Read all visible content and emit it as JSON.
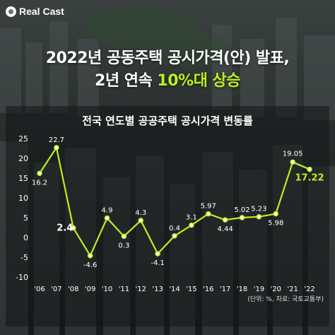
{
  "brand": {
    "logo_text": "Real Cast"
  },
  "headline": {
    "line1": "2022년 공동주택 공시가격(안) 발표,",
    "line2_prefix": "2년 연속 ",
    "line2_highlight": "10%대 상승",
    "highlight_color": "#b9f01f"
  },
  "chart_data": {
    "type": "line",
    "title": "전국 연도별 공공주택 공시가격 변동률",
    "categories": [
      "'06",
      "'07",
      "'08",
      "'09",
      "'10",
      "'11",
      "'12",
      "'13",
      "'14",
      "'15",
      "'16",
      "'17",
      "'18",
      "'19",
      "'20",
      "'21",
      "'22"
    ],
    "values": [
      16.2,
      22.7,
      2.4,
      -4.6,
      4.9,
      0.3,
      4.3,
      -4.1,
      0.4,
      3.1,
      5.97,
      4.44,
      5.02,
      5.23,
      5.98,
      19.05,
      17.22
    ],
    "data_labels": [
      "16.2",
      "22.7",
      "2.4",
      "-4.6",
      "4.9",
      "0.3",
      "4.3",
      "-4.1",
      "0.4",
      "3.1",
      "5.97",
      "4.44",
      "5.02",
      "5.23",
      "5.98",
      "19.05",
      "17.22"
    ],
    "ylim": [
      -10,
      25
    ],
    "yticks": [
      -10,
      -5,
      0,
      5,
      10,
      15,
      20,
      25
    ],
    "ytick_labels": [
      "-10",
      "-5",
      "0",
      "5",
      "10",
      "15",
      "20",
      "25"
    ],
    "grid": false,
    "line_color": "#b9f01f",
    "highlight_last_color": "#b9f01f",
    "source_note": "(단위: %, 자료: 국토교통부)"
  }
}
